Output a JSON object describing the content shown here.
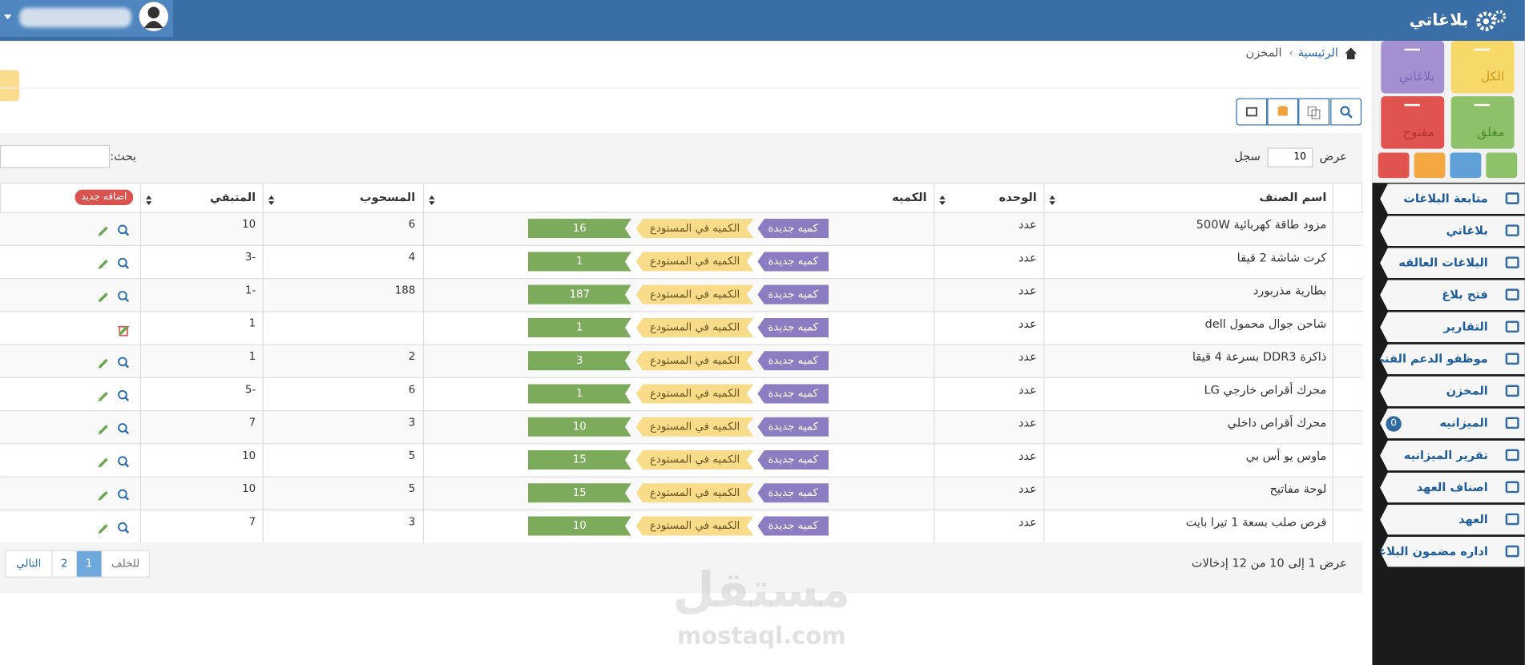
{
  "header": {
    "brand": "بلاغاتي"
  },
  "tiles": [
    "الكل",
    "بلاغاتي",
    "مغلق",
    "مفتوح"
  ],
  "menu": [
    {
      "label": "متابعة البلاغات"
    },
    {
      "label": "بلاغاتي"
    },
    {
      "label": "البلاغات العالقه"
    },
    {
      "label": "فتح بلاغ"
    },
    {
      "label": "التقارير"
    },
    {
      "label": "موظفو الدعم الفني"
    },
    {
      "label": "المخزن"
    },
    {
      "label": "الميزانيه",
      "badge": 0
    },
    {
      "label": "تقرير الميزانيه"
    },
    {
      "label": "اصناف العهد"
    },
    {
      "label": "العهد"
    },
    {
      "label": "اداره مضمون البلاغات"
    }
  ],
  "breadcrumb": [
    "الرئيسية",
    "المخزن"
  ],
  "table_controls": {
    "show": "عرض",
    "page_size": 10,
    "records": "سجل",
    "search": "بحث:"
  },
  "table": {
    "headers": [
      "اسم الصنف",
      "الوحده",
      "الكميه",
      "المسحوب",
      "المتبقي"
    ],
    "add_new": "اضافه جديد",
    "new_qty_label": "كميه جديدة",
    "stock_label": "الكميه في المستودع",
    "rows": [
      [
        "مزود طاقة كهربائية 500W",
        "عدد",
        16,
        6,
        10
      ],
      [
        "كرت شاشة 2 قيقا",
        "عدد",
        1,
        4,
        -3
      ],
      [
        "بطارية مذربورد",
        "عدد",
        187,
        188,
        -1
      ],
      [
        "شاحن جوال محمول dell",
        "عدد",
        1,
        null,
        1
      ],
      [
        "ذاكرة DDR3 بسرعة 4 قيقا",
        "عدد",
        3,
        2,
        1
      ],
      [
        "محرك أقراص خارجي LG",
        "عدد",
        1,
        6,
        -5
      ],
      [
        "محرك أقراص داخلي",
        "عدد",
        10,
        3,
        7
      ],
      [
        "ماوس يو أس بي",
        "عدد",
        15,
        5,
        10
      ],
      [
        "لوحة مفاتيح",
        "عدد",
        15,
        5,
        10
      ],
      [
        "قرص صلب بسعة 1 تيرا بايت",
        "عدد",
        10,
        3,
        7
      ]
    ]
  },
  "footer": {
    "summary": "عرض 1 إلى 10 من 12 إدخالات",
    "pagination": [
      "للخلف",
      1,
      2,
      "التالي"
    ]
  },
  "watermark": {
    "arabic": "مستقل",
    "latin": "mostaql.com"
  }
}
